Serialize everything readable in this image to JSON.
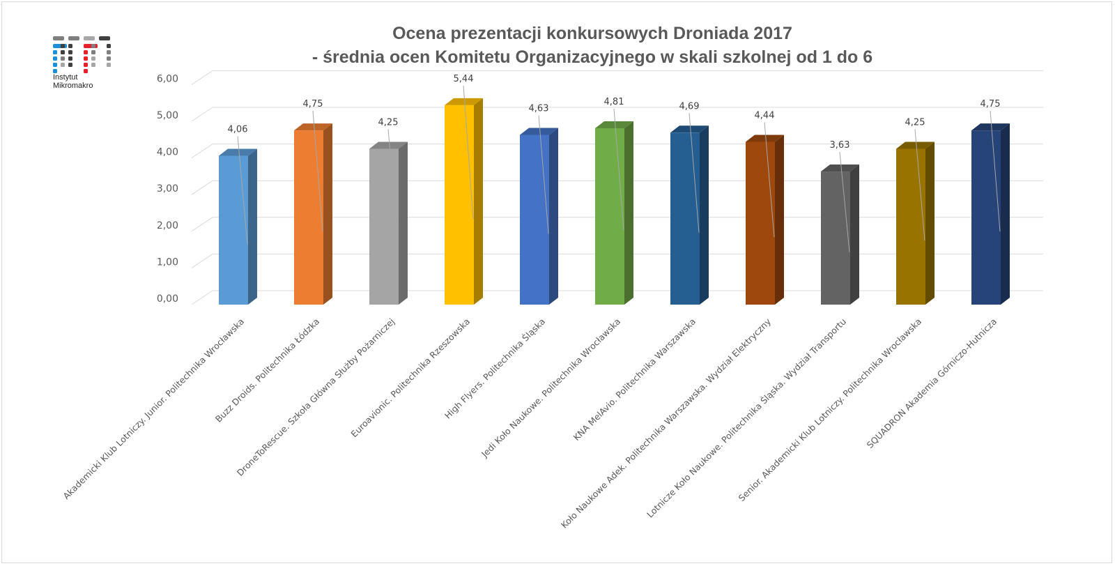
{
  "logo": {
    "line1": "Instytut",
    "line2": "Mikromakro"
  },
  "chart_data": {
    "type": "bar",
    "style": "3d-column",
    "title": "Ocena prezentacji konkursowych Droniada 2017",
    "subtitle": "- średnia ocen Komitetu Organizacyjnego w skali szkolnej od 1 do 6",
    "xlabel": "",
    "ylabel": "",
    "ylim": [
      0,
      6
    ],
    "yticks": [
      "0,00",
      "1,00",
      "2,00",
      "3,00",
      "4,00",
      "5,00",
      "6,00"
    ],
    "grid": true,
    "categories": [
      "Akademicki Klub Lotniczy. Junior. Politechnika Wrocławska",
      "Buzz Droids. Politechnika Łódzka",
      "DroneToRescue. Szkoła Główna Służby Pożarniczej",
      "Euroavionic. Politechnika Rzeszowska",
      "High Flyers. Politechnika Śląska",
      "Jedi Koło Naukowe. Politechnika Wrocławska",
      "KNA MelAvio. Politechnika Warszawska",
      "Koło Naukowe Adek. Politechnika Warszawska. Wydział Elektryczny",
      "Lotnicze Koło Naukowe. Politechnika Śląska. Wydział Transportu",
      "Senior. Akademicki Klub Lotniczy. Politechnika Wrocławska",
      "SQUADRON Akademia Górniczo-Hutnicza"
    ],
    "values": [
      4.06,
      4.75,
      4.25,
      5.44,
      4.63,
      4.81,
      4.69,
      4.44,
      3.63,
      4.25,
      4.75
    ],
    "data_labels": [
      "4,06",
      "4,75",
      "4,25",
      "5,44",
      "4,63",
      "4,81",
      "4,69",
      "4,44",
      "3,63",
      "4,25",
      "4,75"
    ],
    "colors": [
      "#5B9BD5",
      "#ED7D31",
      "#A5A5A5",
      "#FFC000",
      "#4472C4",
      "#70AD47",
      "#255E91",
      "#9E480E",
      "#636363",
      "#997300",
      "#264478"
    ]
  }
}
